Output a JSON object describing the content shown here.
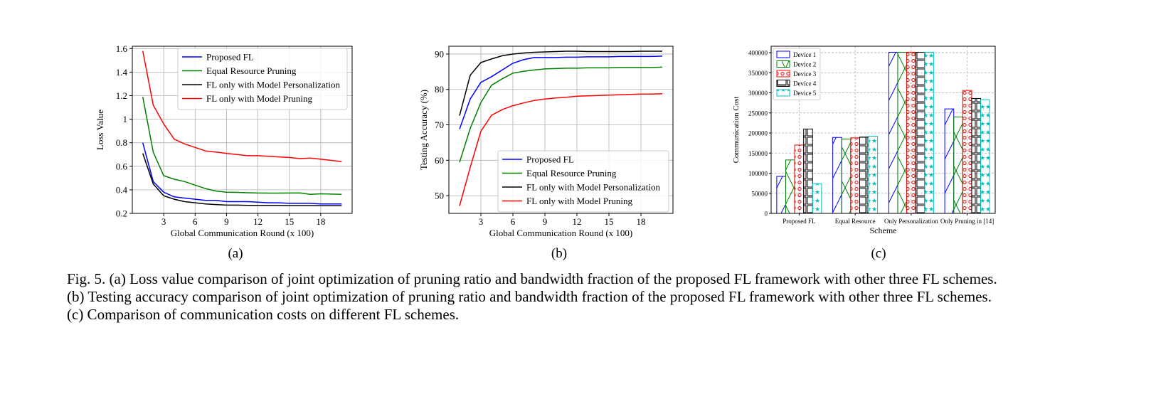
{
  "chart_data": [
    {
      "type": "line",
      "panel": "(a)",
      "xlabel": "Global Communication Round (x 100)",
      "ylabel": "Loss Value",
      "xlim": [
        0,
        21
      ],
      "ylim": [
        0.2,
        1.62
      ],
      "xticks": [
        3,
        6,
        9,
        12,
        15,
        18
      ],
      "yticks": [
        0.2,
        0.4,
        0.6,
        0.8,
        1.0,
        1.2,
        1.4,
        1.6
      ],
      "grid": true,
      "legend": "top-right",
      "x": [
        1,
        2,
        3,
        4,
        5,
        6,
        7,
        8,
        9,
        10,
        11,
        12,
        13,
        14,
        15,
        16,
        17,
        18,
        19,
        20
      ],
      "series": [
        {
          "name": "Proposed FL",
          "color": "#0000ff",
          "values": [
            0.8,
            0.47,
            0.38,
            0.34,
            0.33,
            0.32,
            0.31,
            0.31,
            0.3,
            0.3,
            0.3,
            0.295,
            0.29,
            0.29,
            0.285,
            0.285,
            0.285,
            0.28,
            0.28,
            0.28
          ]
        },
        {
          "name": "Equal Resource Pruning",
          "color": "#008000",
          "values": [
            1.19,
            0.72,
            0.52,
            0.49,
            0.47,
            0.44,
            0.41,
            0.39,
            0.38,
            0.378,
            0.375,
            0.373,
            0.372,
            0.372,
            0.373,
            0.374,
            0.362,
            0.366,
            0.364,
            0.362
          ]
        },
        {
          "name": "FL only with Model Personalization",
          "color": "#000000",
          "values": [
            0.71,
            0.45,
            0.35,
            0.32,
            0.3,
            0.29,
            0.28,
            0.275,
            0.27,
            0.27,
            0.268,
            0.267,
            0.267,
            0.267,
            0.266,
            0.266,
            0.266,
            0.265,
            0.265,
            0.265
          ]
        },
        {
          "name": "FL only with Model Pruning",
          "color": "#ff0000",
          "values": [
            1.58,
            1.12,
            0.96,
            0.83,
            0.79,
            0.76,
            0.73,
            0.72,
            0.71,
            0.7,
            0.69,
            0.69,
            0.685,
            0.68,
            0.675,
            0.665,
            0.67,
            0.66,
            0.65,
            0.64
          ]
        }
      ]
    },
    {
      "type": "line",
      "panel": "(b)",
      "xlabel": "Global Communication Round (x 100)",
      "ylabel": "Testing Accuracy (%)",
      "xlim": [
        0,
        21
      ],
      "ylim": [
        45,
        92.2
      ],
      "xticks": [
        3,
        6,
        9,
        12,
        15,
        18
      ],
      "yticks": [
        50,
        60,
        70,
        80,
        90
      ],
      "grid": true,
      "legend": "bottom-right",
      "x": [
        1,
        2,
        3,
        4,
        5,
        6,
        7,
        8,
        9,
        10,
        11,
        12,
        13,
        14,
        15,
        16,
        17,
        18,
        19,
        20
      ],
      "series": [
        {
          "name": "Proposed FL",
          "color": "#0000ff",
          "values": [
            68.8,
            77.3,
            82.0,
            83.6,
            85.5,
            87.4,
            88.4,
            89.0,
            89.0,
            89.0,
            89.1,
            89.1,
            89.2,
            89.2,
            89.2,
            89.3,
            89.3,
            89.3,
            89.3,
            89.4
          ]
        },
        {
          "name": "Equal Resource Pruning",
          "color": "#008000",
          "values": [
            59.4,
            69.0,
            76.3,
            81.2,
            83.0,
            84.6,
            85.1,
            85.5,
            85.8,
            85.9,
            86.0,
            86.0,
            86.1,
            86.1,
            86.1,
            86.2,
            86.2,
            86.2,
            86.2,
            86.3
          ]
        },
        {
          "name": "FL only with Model Personalization",
          "color": "#000000",
          "values": [
            72.6,
            84.0,
            87.6,
            88.6,
            89.5,
            90.0,
            90.3,
            90.5,
            90.6,
            90.7,
            90.8,
            90.8,
            90.7,
            90.7,
            90.7,
            90.7,
            90.7,
            90.8,
            90.8,
            90.8
          ]
        },
        {
          "name": "FL only with Model Pruning",
          "color": "#ff0000",
          "values": [
            47.1,
            58.0,
            68.2,
            72.7,
            74.3,
            75.4,
            76.2,
            76.9,
            77.3,
            77.6,
            77.8,
            78.1,
            78.2,
            78.3,
            78.4,
            78.5,
            78.6,
            78.7,
            78.7,
            78.8
          ]
        }
      ]
    },
    {
      "type": "bar",
      "panel": "(c)",
      "xlabel": "Scheme",
      "ylabel": "Communication Cost",
      "ylim": [
        0,
        416000
      ],
      "yticks": [
        0,
        50000,
        100000,
        150000,
        200000,
        250000,
        300000,
        350000,
        400000
      ],
      "grid": true,
      "legend": "top-left",
      "categories": [
        "Proposed FL",
        "Equal Resource",
        "Only Personalization",
        "Only Pruning in [14]"
      ],
      "series": [
        {
          "name": "Device 1",
          "color": "#0000ff",
          "hatch": "diagonal",
          "values": [
            92000,
            189000,
            401000,
            260000
          ]
        },
        {
          "name": "Device 2",
          "color": "#008000",
          "hatch": "cross",
          "values": [
            133000,
            185000,
            401000,
            240000
          ]
        },
        {
          "name": "Device 3",
          "color": "#ff0000",
          "hatch": "circles",
          "values": [
            170000,
            188000,
            401000,
            306000
          ]
        },
        {
          "name": "Device 4",
          "color": "#000000",
          "hatch": "squares",
          "values": [
            210000,
            190000,
            401000,
            286000
          ]
        },
        {
          "name": "Device 5",
          "color": "#00bfbf",
          "hatch": "stars",
          "values": [
            74000,
            192000,
            401000,
            283000
          ]
        }
      ]
    }
  ],
  "subcaptions": [
    "(a)",
    "(b)",
    "(c)"
  ],
  "caption": {
    "line1": "Fig. 5.  (a) Loss value comparison of joint optimization of pruning ratio and bandwidth fraction of the proposed FL framework with other three FL schemes.",
    "line2": "(b) Testing accuracy comparison of joint optimization of pruning ratio and bandwidth fraction of the proposed FL framework with other three FL schemes.",
    "line3": "(c) Comparison of communication costs on different FL schemes."
  }
}
